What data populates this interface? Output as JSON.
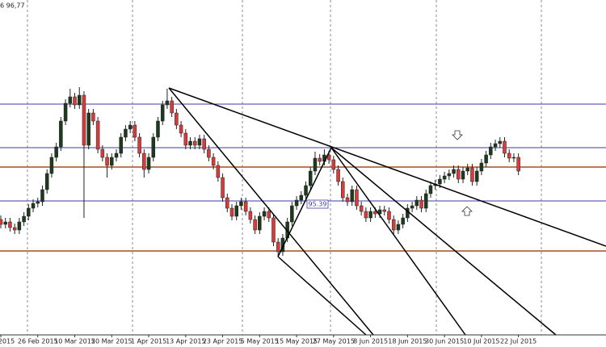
{
  "chart_data": {
    "type": "candlestick",
    "info_text": "6 96,77",
    "price_label": "95.39",
    "categories": [
      "2015",
      null,
      null,
      null,
      null,
      null,
      null,
      null,
      "26 Feb 2015",
      null,
      null,
      null,
      null,
      null,
      null,
      null,
      "10 Mar 2015",
      null,
      null,
      null,
      null,
      null,
      null,
      null,
      "20 Mar 2015",
      null,
      null,
      null,
      null,
      null,
      null,
      null,
      "1 Apr 2015",
      null,
      null,
      null,
      null,
      null,
      null,
      null,
      "13 Apr 2015",
      null,
      null,
      null,
      null,
      null,
      null,
      null,
      "23 Apr 2015",
      null,
      null,
      null,
      null,
      null,
      null,
      null,
      "5 May 2015",
      null,
      null,
      null,
      null,
      null,
      null,
      null,
      "15 May 2015",
      null,
      null,
      null,
      null,
      null,
      null,
      null,
      "27 May 2015",
      null,
      null,
      null,
      null,
      null,
      null,
      null,
      "8 Jun 2015",
      null,
      null,
      null,
      null,
      null,
      null,
      null,
      "18 Jun 2015",
      null,
      null,
      null,
      null,
      null,
      null,
      null,
      "30 Jun 2015",
      null,
      null,
      null,
      null,
      null,
      null,
      null,
      "10 Jul 2015",
      null,
      null,
      null,
      null,
      null,
      null,
      null,
      "22 Jul 2015"
    ],
    "open": [
      95.01,
      94.89,
      94.95,
      94.81,
      94.75,
      94.95,
      95.09,
      95.29,
      95.41,
      95.45,
      95.75,
      96.15,
      96.55,
      96.81,
      97.45,
      97.89,
      98.05,
      97.85,
      98.09,
      96.85,
      97.65,
      97.45,
      96.75,
      96.55,
      96.35,
      96.55,
      96.65,
      97.05,
      97.25,
      97.35,
      97.05,
      96.65,
      96.25,
      96.55,
      97.05,
      97.45,
      97.85,
      97.95,
      97.65,
      97.35,
      97.15,
      96.85,
      96.95,
      96.85,
      97.01,
      96.75,
      96.55,
      96.35,
      96.05,
      95.55,
      95.29,
      95.09,
      95.35,
      95.45,
      95.21,
      95.01,
      94.75,
      95.09,
      95.21,
      95.05,
      94.45,
      94.21,
      94.55,
      94.95,
      95.35,
      95.49,
      95.61,
      95.85,
      96.21,
      96.53,
      96.45,
      96.61,
      96.49,
      96.25,
      95.95,
      95.55,
      95.45,
      95.75,
      95.35,
      95.21,
      95.05,
      95.21,
      95.15,
      95.25,
      95.21,
      95.01,
      94.75,
      94.89,
      95.05,
      95.29,
      95.35,
      95.49,
      95.29,
      95.65,
      95.85,
      95.89,
      96.01,
      96.09,
      96.15,
      96.25,
      96.01,
      96.21,
      96.29,
      95.95,
      96.21,
      96.41,
      96.61,
      96.81,
      96.89,
      96.95,
      96.65,
      96.53,
      96.55
    ],
    "high": [
      95.11,
      95.05,
      95.05,
      94.91,
      95.05,
      95.19,
      95.39,
      95.51,
      95.55,
      95.85,
      96.25,
      96.65,
      96.91,
      97.55,
      97.99,
      98.25,
      98.15,
      98.29,
      98.19,
      97.75,
      97.75,
      97.55,
      96.85,
      96.65,
      96.65,
      96.75,
      97.15,
      97.35,
      97.45,
      97.45,
      97.15,
      96.75,
      96.65,
      97.15,
      97.55,
      97.95,
      98.25,
      98.05,
      97.75,
      97.45,
      97.25,
      97.05,
      97.05,
      97.11,
      97.11,
      96.85,
      96.65,
      96.45,
      96.15,
      95.65,
      95.39,
      95.45,
      95.55,
      95.55,
      95.31,
      95.11,
      95.19,
      95.31,
      95.31,
      95.15,
      94.55,
      94.65,
      95.05,
      95.45,
      95.59,
      95.71,
      95.95,
      96.31,
      96.69,
      96.63,
      96.75,
      96.71,
      96.59,
      96.35,
      96.05,
      95.65,
      95.85,
      95.85,
      95.45,
      95.31,
      95.31,
      95.31,
      95.35,
      95.35,
      95.31,
      95.11,
      94.99,
      95.15,
      95.39,
      95.45,
      95.59,
      95.59,
      95.75,
      95.95,
      95.99,
      96.11,
      96.19,
      96.25,
      96.35,
      96.35,
      96.31,
      96.39,
      96.39,
      96.31,
      96.51,
      96.71,
      96.91,
      96.99,
      97.05,
      97.05,
      96.75,
      96.65,
      96.65
    ],
    "low": [
      94.79,
      94.79,
      94.71,
      94.65,
      94.65,
      94.85,
      94.99,
      95.19,
      95.31,
      95.35,
      95.65,
      96.05,
      96.45,
      96.71,
      97.35,
      97.79,
      97.75,
      97.75,
      95.05,
      96.75,
      97.35,
      96.65,
      96.45,
      96.05,
      96.25,
      96.45,
      96.55,
      96.95,
      97.15,
      96.95,
      96.55,
      96.05,
      96.15,
      96.45,
      96.95,
      97.35,
      97.75,
      97.55,
      97.25,
      97.05,
      96.75,
      96.75,
      96.75,
      96.75,
      96.65,
      96.45,
      96.25,
      95.95,
      95.45,
      95.19,
      94.99,
      94.99,
      95.25,
      95.11,
      94.91,
      94.65,
      94.65,
      94.99,
      94.95,
      94.35,
      94.11,
      94.11,
      94.45,
      94.85,
      95.25,
      95.39,
      95.51,
      95.75,
      96.11,
      96.35,
      96.35,
      96.39,
      96.15,
      95.85,
      95.45,
      95.35,
      95.35,
      95.25,
      95.11,
      94.95,
      94.95,
      95.05,
      95.05,
      95.11,
      94.91,
      94.65,
      94.65,
      94.79,
      94.95,
      95.19,
      95.25,
      95.19,
      95.19,
      95.55,
      95.75,
      95.79,
      95.91,
      95.99,
      96.05,
      95.91,
      95.91,
      96.11,
      95.85,
      95.85,
      96.11,
      96.31,
      96.51,
      96.71,
      96.79,
      96.55,
      96.43,
      96.43,
      96.11
    ],
    "close": [
      94.89,
      94.95,
      94.81,
      94.75,
      94.95,
      95.09,
      95.29,
      95.41,
      95.45,
      95.75,
      96.15,
      96.55,
      96.81,
      97.45,
      97.89,
      98.05,
      97.85,
      98.09,
      96.85,
      97.65,
      97.45,
      96.75,
      96.55,
      96.35,
      96.55,
      96.65,
      97.05,
      97.25,
      97.35,
      97.05,
      96.65,
      96.25,
      96.55,
      97.05,
      97.45,
      97.85,
      97.95,
      97.65,
      97.35,
      97.15,
      96.85,
      96.95,
      96.85,
      97.01,
      96.75,
      96.55,
      96.35,
      96.05,
      95.55,
      95.29,
      95.09,
      95.35,
      95.45,
      95.21,
      95.01,
      94.75,
      95.09,
      95.21,
      95.05,
      94.45,
      94.21,
      94.55,
      94.95,
      95.35,
      95.49,
      95.61,
      95.85,
      96.21,
      96.53,
      96.45,
      96.61,
      96.49,
      96.25,
      95.95,
      95.55,
      95.45,
      95.75,
      95.35,
      95.21,
      95.05,
      95.21,
      95.15,
      95.25,
      95.21,
      95.01,
      94.75,
      94.89,
      95.05,
      95.29,
      95.35,
      95.49,
      95.29,
      95.65,
      95.85,
      95.89,
      96.01,
      96.09,
      96.15,
      96.25,
      96.01,
      96.21,
      96.29,
      95.95,
      96.21,
      96.41,
      96.61,
      96.81,
      96.89,
      96.95,
      96.65,
      96.53,
      96.55,
      96.21
    ],
    "up_color": "#1e3a1e",
    "down_color": "#d63c3c",
    "ylim": [
      92.15,
      100.45
    ]
  }
}
